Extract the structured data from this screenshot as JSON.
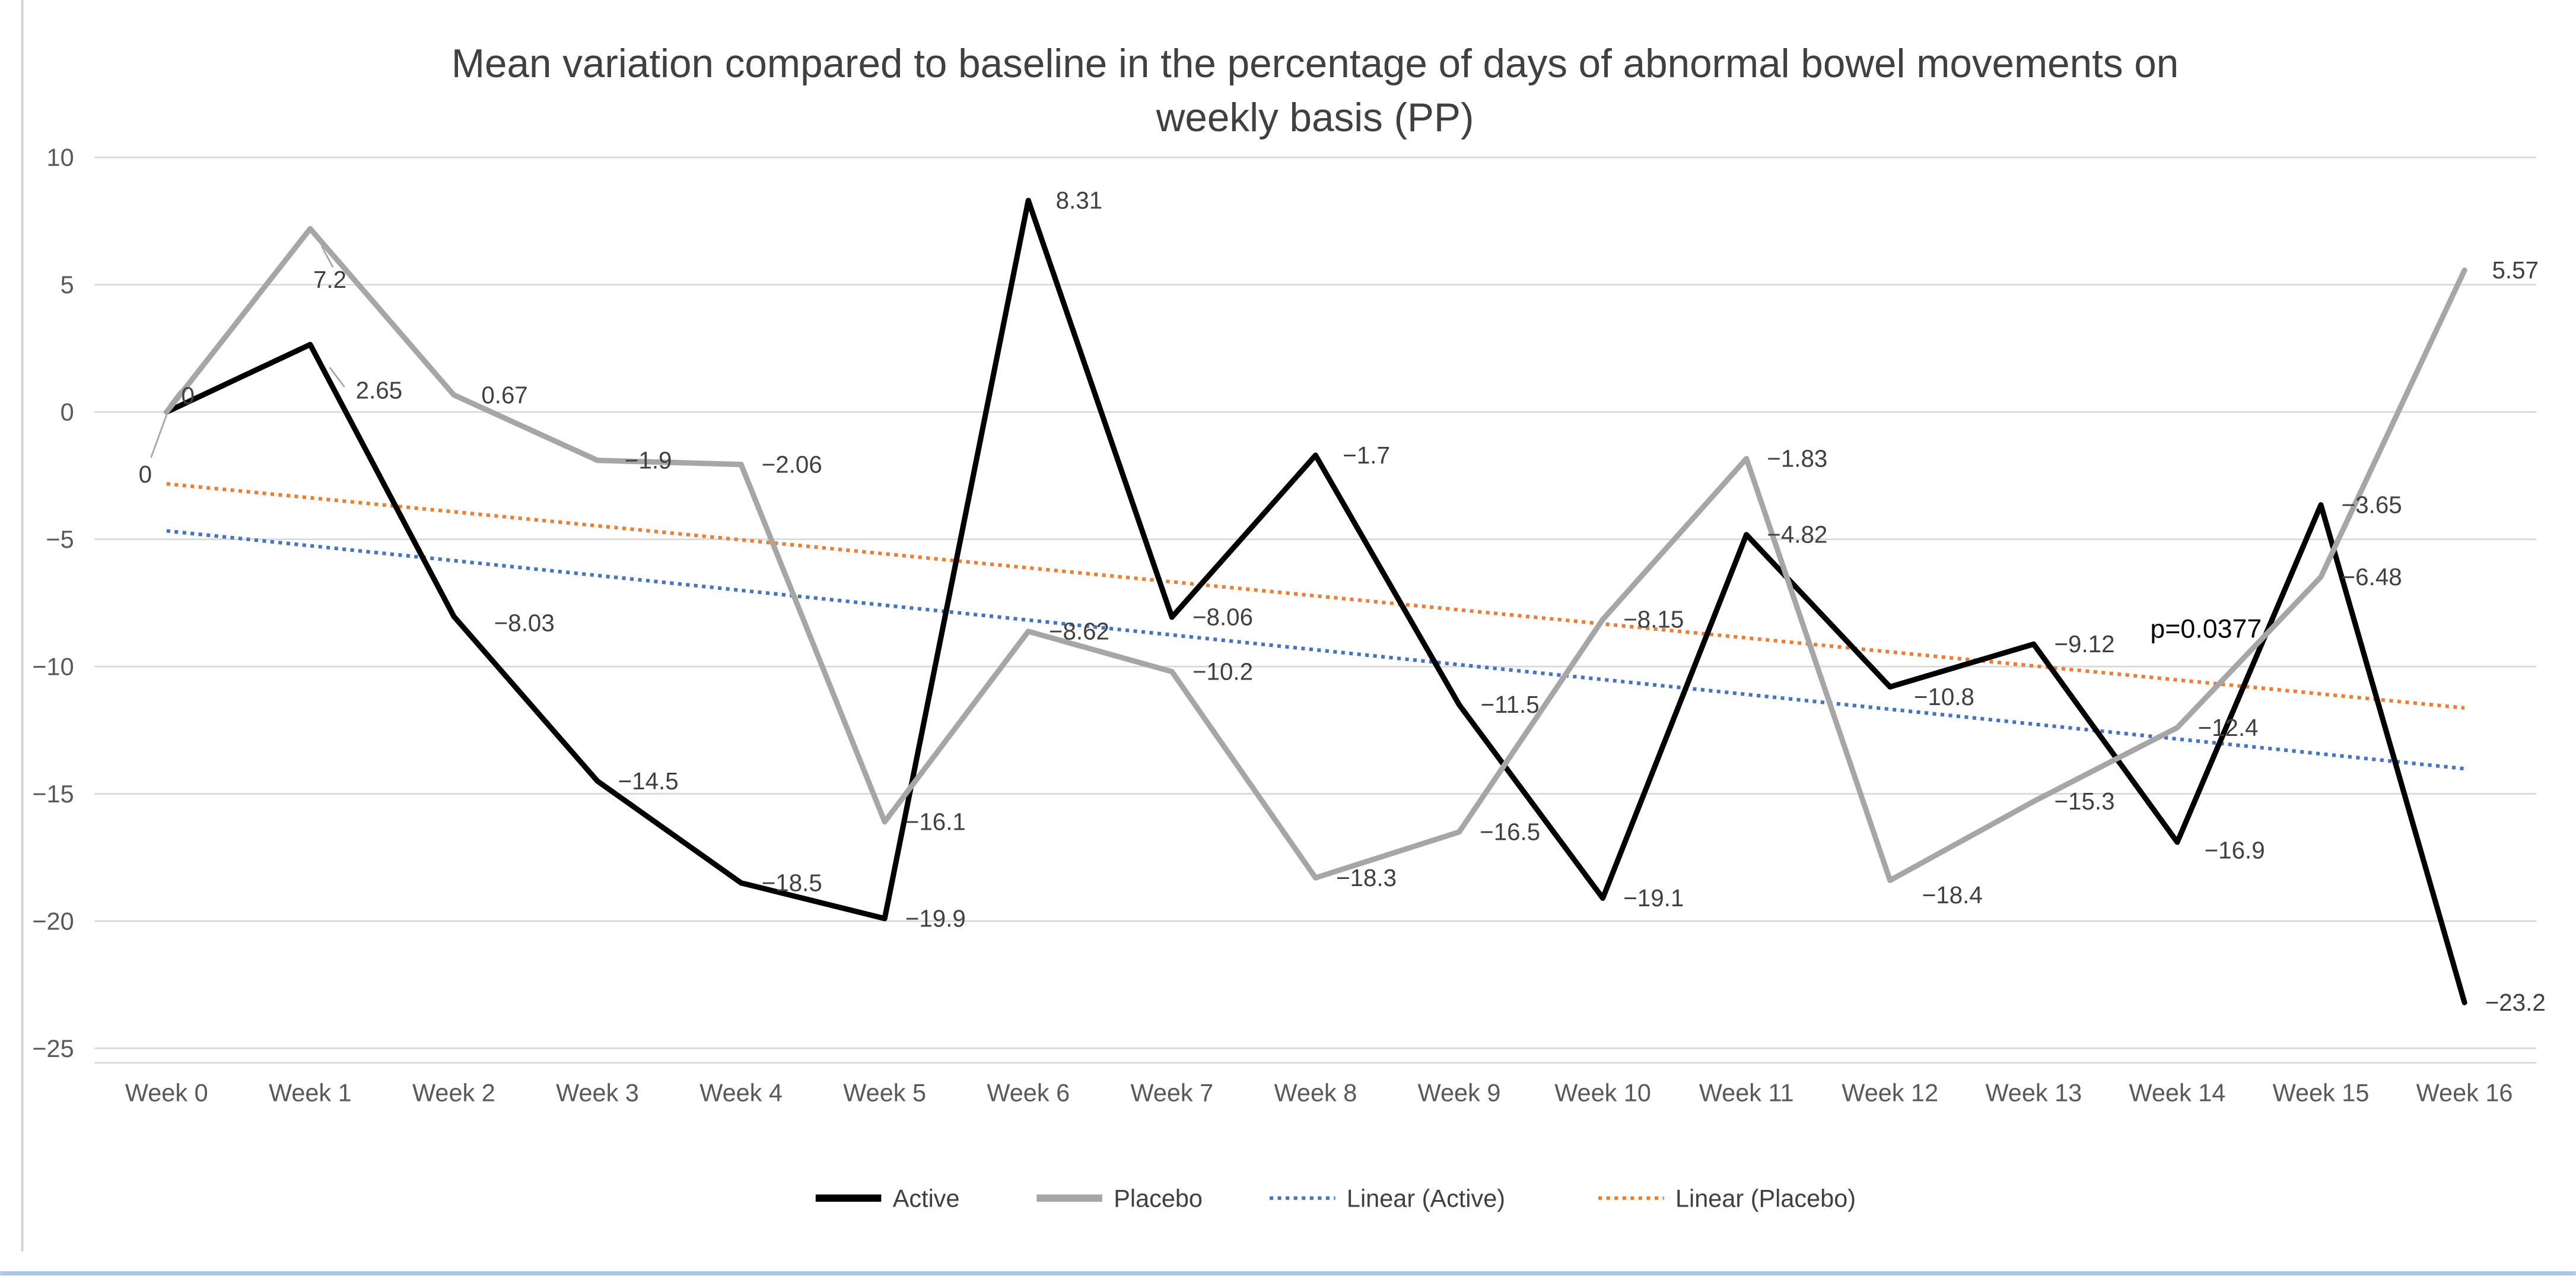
{
  "page": {
    "background": "#ffffff",
    "left_edge_line_color": "#d1d0d5",
    "bottom_edge_line_color": "#a9c7e8"
  },
  "chart_data": {
    "type": "line",
    "title": "Mean variation compared to baseline in the percentage of days of abnormal bowel movements on weekly basis (PP)",
    "title_lines": [
      "Mean variation compared to baseline in the percentage of days of abnormal bowel movements on",
      "weekly basis (PP)"
    ],
    "categories": [
      "Week 0",
      "Week 1",
      "Week 2",
      "Week 3",
      "Week 4",
      "Week 5",
      "Week 6",
      "Week 7",
      "Week 8",
      "Week 9",
      "Week 10",
      "Week 11",
      "Week 12",
      "Week 13",
      "Week 14",
      "Week 15",
      "Week 16"
    ],
    "series": [
      {
        "name": "Active",
        "color": "#000000",
        "values": [
          0,
          2.65,
          -8.03,
          -14.5,
          -18.5,
          -19.9,
          8.31,
          -8.06,
          -1.7,
          -11.5,
          -19.1,
          -4.82,
          -10.8,
          -9.12,
          -16.9,
          -3.65,
          -23.2
        ],
        "labels": [
          "0",
          "2.65",
          "−8.03",
          "−14.5",
          "−18.5",
          "−19.9",
          "8.31",
          "−8.06",
          "−1.7",
          "−11.5",
          "−19.1",
          "−4.82",
          "−10.8",
          "−9.12",
          "−16.9",
          "−3.65",
          "−23.2"
        ]
      },
      {
        "name": "Placebo",
        "color": "#a6a6a6",
        "values": [
          0,
          7.2,
          0.67,
          -1.9,
          -2.06,
          -16.1,
          -8.62,
          -10.2,
          -18.3,
          -16.5,
          -8.15,
          -1.83,
          -18.4,
          -15.3,
          -12.4,
          -6.48,
          5.57
        ],
        "labels": [
          "0",
          "7.2",
          "0.67",
          "−1.9",
          "−2.06",
          "−16.1",
          "−8.62",
          "−10.2",
          "−18.3",
          "−16.5",
          "−8.15",
          "−1.83",
          "−18.4",
          "−15.3",
          "−12.4",
          "−6.48",
          "5.57"
        ]
      }
    ],
    "trendlines": [
      {
        "name": "Linear (Active)",
        "series": "Active",
        "color": "#4472c4"
      },
      {
        "name": "Linear (Placebo)",
        "series": "Placebo",
        "color": "#ed7d31"
      }
    ],
    "annotations": [
      {
        "text": "p=0.0377",
        "week": 14.2,
        "value": -8.55,
        "color": "#000000"
      }
    ],
    "y_axis": {
      "min": -25,
      "max": 10,
      "step": 5,
      "tick_labels": [
        "10",
        "5",
        "0",
        "−5",
        "−10",
        "−15",
        "−20",
        "−25"
      ]
    },
    "x_axis": {
      "labels_prefix": "Week"
    },
    "grid": true,
    "gridline_color": "#d9d9d9",
    "legend": {
      "position": "bottom",
      "entries": [
        "Active",
        "Placebo",
        "Linear (Active)",
        "Linear (Placebo)"
      ]
    },
    "layout_hints": {
      "label_offsets": {
        "Active": {
          "0": [
            13,
            -10
          ],
          "1": [
            42,
            28
          ],
          "2": [
            43,
            4
          ],
          "12": [
            33,
            6
          ],
          "14": [
            35,
            5
          ]
        },
        "Placebo": {
          "0": [
            -13,
            38
          ],
          "1": [
            12,
            31
          ],
          "12": [
            38,
            9
          ]
        }
      }
    }
  }
}
